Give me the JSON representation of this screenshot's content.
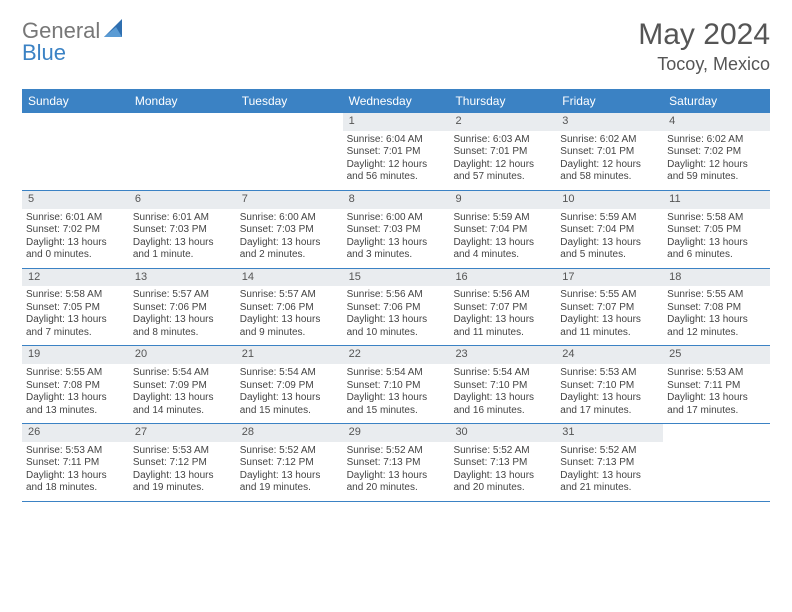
{
  "logo": {
    "general": "General",
    "blue": "Blue"
  },
  "header": {
    "month": "May 2024",
    "location": "Tocoy, Mexico"
  },
  "weekdays": [
    "Sunday",
    "Monday",
    "Tuesday",
    "Wednesday",
    "Thursday",
    "Friday",
    "Saturday"
  ],
  "colors": {
    "accent": "#3b82c4",
    "daybar": "#e9ecef",
    "text": "#444444",
    "header_text": "#555555"
  },
  "labels": {
    "sunrise": "Sunrise:",
    "sunset": "Sunset:",
    "daylight": "Daylight:"
  },
  "weeks": [
    [
      {
        "blank": true
      },
      {
        "blank": true
      },
      {
        "blank": true
      },
      {
        "n": "1",
        "sr": "6:04 AM",
        "ss": "7:01 PM",
        "dl1": "12 hours",
        "dl2": "and 56 minutes."
      },
      {
        "n": "2",
        "sr": "6:03 AM",
        "ss": "7:01 PM",
        "dl1": "12 hours",
        "dl2": "and 57 minutes."
      },
      {
        "n": "3",
        "sr": "6:02 AM",
        "ss": "7:01 PM",
        "dl1": "12 hours",
        "dl2": "and 58 minutes."
      },
      {
        "n": "4",
        "sr": "6:02 AM",
        "ss": "7:02 PM",
        "dl1": "12 hours",
        "dl2": "and 59 minutes."
      }
    ],
    [
      {
        "n": "5",
        "sr": "6:01 AM",
        "ss": "7:02 PM",
        "dl1": "13 hours",
        "dl2": "and 0 minutes."
      },
      {
        "n": "6",
        "sr": "6:01 AM",
        "ss": "7:03 PM",
        "dl1": "13 hours",
        "dl2": "and 1 minute."
      },
      {
        "n": "7",
        "sr": "6:00 AM",
        "ss": "7:03 PM",
        "dl1": "13 hours",
        "dl2": "and 2 minutes."
      },
      {
        "n": "8",
        "sr": "6:00 AM",
        "ss": "7:03 PM",
        "dl1": "13 hours",
        "dl2": "and 3 minutes."
      },
      {
        "n": "9",
        "sr": "5:59 AM",
        "ss": "7:04 PM",
        "dl1": "13 hours",
        "dl2": "and 4 minutes."
      },
      {
        "n": "10",
        "sr": "5:59 AM",
        "ss": "7:04 PM",
        "dl1": "13 hours",
        "dl2": "and 5 minutes."
      },
      {
        "n": "11",
        "sr": "5:58 AM",
        "ss": "7:05 PM",
        "dl1": "13 hours",
        "dl2": "and 6 minutes."
      }
    ],
    [
      {
        "n": "12",
        "sr": "5:58 AM",
        "ss": "7:05 PM",
        "dl1": "13 hours",
        "dl2": "and 7 minutes."
      },
      {
        "n": "13",
        "sr": "5:57 AM",
        "ss": "7:06 PM",
        "dl1": "13 hours",
        "dl2": "and 8 minutes."
      },
      {
        "n": "14",
        "sr": "5:57 AM",
        "ss": "7:06 PM",
        "dl1": "13 hours",
        "dl2": "and 9 minutes."
      },
      {
        "n": "15",
        "sr": "5:56 AM",
        "ss": "7:06 PM",
        "dl1": "13 hours",
        "dl2": "and 10 minutes."
      },
      {
        "n": "16",
        "sr": "5:56 AM",
        "ss": "7:07 PM",
        "dl1": "13 hours",
        "dl2": "and 11 minutes."
      },
      {
        "n": "17",
        "sr": "5:55 AM",
        "ss": "7:07 PM",
        "dl1": "13 hours",
        "dl2": "and 11 minutes."
      },
      {
        "n": "18",
        "sr": "5:55 AM",
        "ss": "7:08 PM",
        "dl1": "13 hours",
        "dl2": "and 12 minutes."
      }
    ],
    [
      {
        "n": "19",
        "sr": "5:55 AM",
        "ss": "7:08 PM",
        "dl1": "13 hours",
        "dl2": "and 13 minutes."
      },
      {
        "n": "20",
        "sr": "5:54 AM",
        "ss": "7:09 PM",
        "dl1": "13 hours",
        "dl2": "and 14 minutes."
      },
      {
        "n": "21",
        "sr": "5:54 AM",
        "ss": "7:09 PM",
        "dl1": "13 hours",
        "dl2": "and 15 minutes."
      },
      {
        "n": "22",
        "sr": "5:54 AM",
        "ss": "7:10 PM",
        "dl1": "13 hours",
        "dl2": "and 15 minutes."
      },
      {
        "n": "23",
        "sr": "5:54 AM",
        "ss": "7:10 PM",
        "dl1": "13 hours",
        "dl2": "and 16 minutes."
      },
      {
        "n": "24",
        "sr": "5:53 AM",
        "ss": "7:10 PM",
        "dl1": "13 hours",
        "dl2": "and 17 minutes."
      },
      {
        "n": "25",
        "sr": "5:53 AM",
        "ss": "7:11 PM",
        "dl1": "13 hours",
        "dl2": "and 17 minutes."
      }
    ],
    [
      {
        "n": "26",
        "sr": "5:53 AM",
        "ss": "7:11 PM",
        "dl1": "13 hours",
        "dl2": "and 18 minutes."
      },
      {
        "n": "27",
        "sr": "5:53 AM",
        "ss": "7:12 PM",
        "dl1": "13 hours",
        "dl2": "and 19 minutes."
      },
      {
        "n": "28",
        "sr": "5:52 AM",
        "ss": "7:12 PM",
        "dl1": "13 hours",
        "dl2": "and 19 minutes."
      },
      {
        "n": "29",
        "sr": "5:52 AM",
        "ss": "7:13 PM",
        "dl1": "13 hours",
        "dl2": "and 20 minutes."
      },
      {
        "n": "30",
        "sr": "5:52 AM",
        "ss": "7:13 PM",
        "dl1": "13 hours",
        "dl2": "and 20 minutes."
      },
      {
        "n": "31",
        "sr": "5:52 AM",
        "ss": "7:13 PM",
        "dl1": "13 hours",
        "dl2": "and 21 minutes."
      },
      {
        "blank": true
      }
    ]
  ]
}
